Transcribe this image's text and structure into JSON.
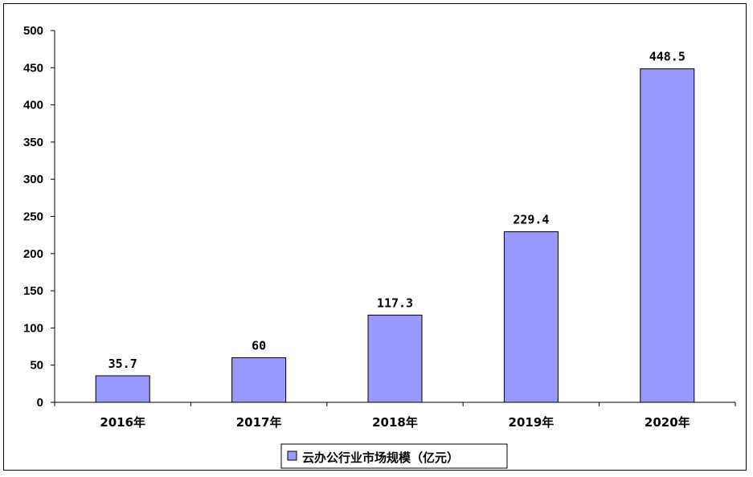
{
  "chart_data": {
    "type": "bar",
    "categories": [
      "2016年",
      "2017年",
      "2018年",
      "2019年",
      "2020年"
    ],
    "series": [
      {
        "name": "云办公行业市场规模（亿元）",
        "values": [
          35.7,
          60,
          117.3,
          229.4,
          448.5
        ],
        "labels": [
          "35.7",
          "60",
          "117.3",
          "229.4",
          "448.5"
        ],
        "color": "#9999ff"
      }
    ],
    "ylim": [
      0,
      500
    ],
    "yticks": [
      "0",
      "50",
      "100",
      "150",
      "200",
      "250",
      "300",
      "350",
      "400",
      "450",
      "500"
    ],
    "grid": false,
    "legend": "bottom-center"
  }
}
